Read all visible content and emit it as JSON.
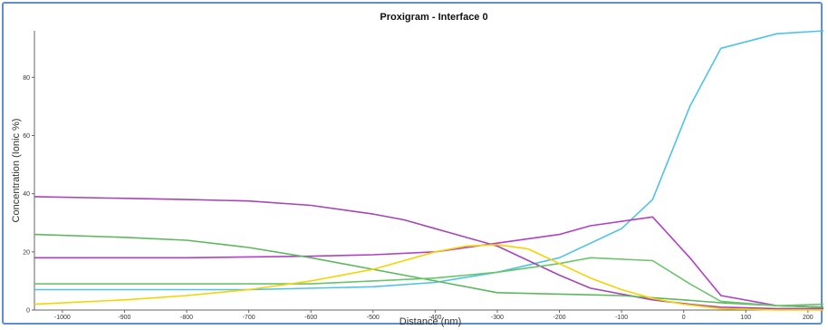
{
  "chart_data": {
    "type": "line",
    "title": "Proxigram - Interface 0",
    "xlabel": "Distance (nm)",
    "ylabel": "Concentration (Ionic %)",
    "xlim": [
      -1045,
      225
    ],
    "ylim": [
      0,
      96
    ],
    "xticks": [
      -1000,
      -900,
      -800,
      -700,
      -600,
      -500,
      -400,
      -300,
      -200,
      -100,
      0,
      100,
      200
    ],
    "xtick_labels": [
      "-1000",
      "-900",
      "-800",
      "-700",
      "-600",
      "-500",
      "-400",
      "-300",
      "-200",
      "-100",
      "0",
      "100",
      "200"
    ],
    "yticks": [
      0,
      20,
      40,
      60,
      80
    ],
    "ytick_labels": [
      "0",
      "20",
      "40",
      "60",
      "80"
    ],
    "grid": false,
    "series": [
      {
        "color": "#4fc3e6",
        "x": [
          -1045,
          -900,
          -700,
          -500,
          -400,
          -300,
          -200,
          -100,
          -50,
          10,
          60,
          150,
          225
        ],
        "y": [
          7,
          7,
          7,
          8,
          9.5,
          13,
          18,
          28,
          38,
          70,
          90,
          95,
          96
        ]
      },
      {
        "color": "#a845b6",
        "x": [
          -1045,
          -800,
          -700,
          -600,
          -500,
          -450,
          -400,
          -300,
          -200,
          -150,
          -50,
          10,
          60,
          150,
          225
        ],
        "y": [
          39,
          38,
          37.5,
          36,
          33,
          31,
          28,
          22,
          12,
          7.5,
          3.5,
          2,
          1,
          0.5,
          0.5
        ]
      },
      {
        "color": "#b040c8",
        "x": [
          -1045,
          -800,
          -600,
          -500,
          -400,
          -300,
          -200,
          -150,
          -50,
          10,
          60,
          150,
          225
        ],
        "y": [
          18,
          18,
          18.5,
          19,
          20,
          23,
          26,
          29,
          32,
          18,
          5,
          1.5,
          1
        ]
      },
      {
        "color": "#5cb85c",
        "x": [
          -1045,
          -900,
          -800,
          -700,
          -600,
          -500,
          -400,
          -300,
          -200,
          -100,
          0,
          60,
          150,
          225
        ],
        "y": [
          26,
          25,
          24,
          21.5,
          18,
          14,
          10,
          6,
          5.5,
          5,
          3.5,
          2.5,
          1.5,
          1
        ]
      },
      {
        "color": "#6cc36c",
        "x": [
          -1045,
          -800,
          -600,
          -500,
          -400,
          -300,
          -200,
          -150,
          -50,
          10,
          60,
          150,
          225
        ],
        "y": [
          9,
          9,
          9,
          10,
          11,
          13,
          16,
          18,
          17,
          9,
          3,
          1.5,
          2
        ]
      },
      {
        "color": "#f5d300",
        "x": [
          -1045,
          -900,
          -800,
          -700,
          -600,
          -500,
          -450,
          -400,
          -350,
          -300,
          -250,
          -200,
          -150,
          -100,
          -50,
          0,
          60,
          150,
          225
        ],
        "y": [
          2,
          3.5,
          5,
          7,
          10,
          14,
          17,
          20,
          22,
          22.5,
          21,
          16,
          11,
          7,
          4,
          2,
          0.5,
          0,
          0
        ]
      }
    ]
  }
}
